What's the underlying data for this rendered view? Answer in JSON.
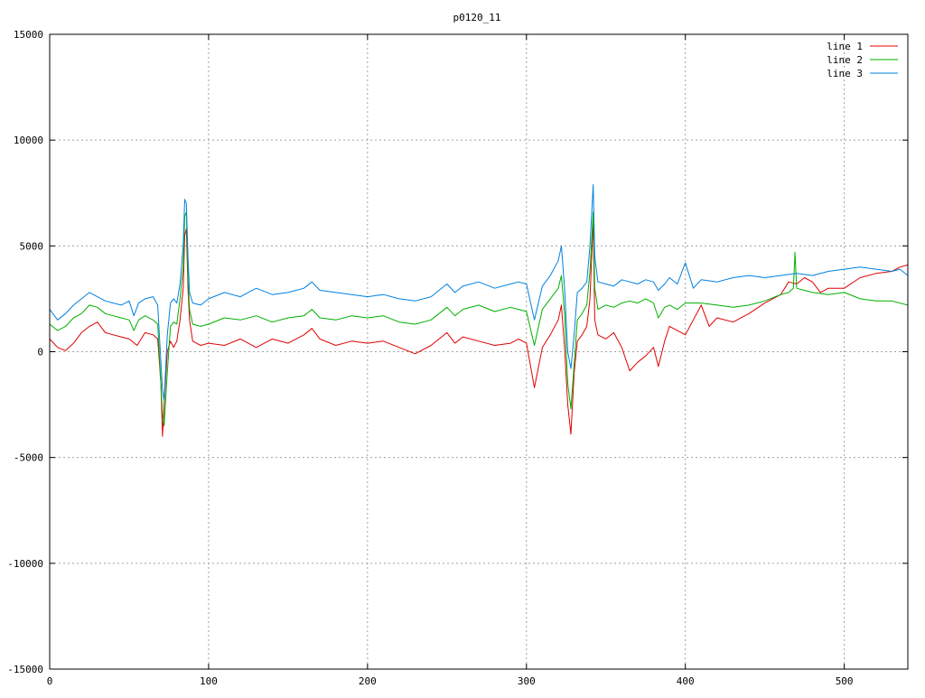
{
  "chart_data": {
    "type": "line",
    "title": "p0120_11",
    "xlabel": "",
    "ylabel": "",
    "xlim": [
      0,
      540
    ],
    "ylim": [
      -15000,
      15000
    ],
    "grid": true,
    "legend_position": "top-right",
    "x_ticks": [
      0,
      100,
      200,
      300,
      400,
      500
    ],
    "y_ticks": [
      -15000,
      -10000,
      -5000,
      0,
      5000,
      10000,
      15000
    ],
    "x_tick_labels": [
      "0",
      "100",
      "200",
      "300",
      "400",
      "500"
    ],
    "y_tick_labels": [
      "-15000",
      "-10000",
      "-5000",
      "0",
      "5000",
      "10000",
      "15000"
    ],
    "series": [
      {
        "name": "line 1",
        "color": "#e00000",
        "points": [
          [
            0,
            600
          ],
          [
            5,
            200
          ],
          [
            10,
            50
          ],
          [
            15,
            400
          ],
          [
            20,
            900
          ],
          [
            25,
            1200
          ],
          [
            30,
            1400
          ],
          [
            35,
            900
          ],
          [
            40,
            800
          ],
          [
            45,
            700
          ],
          [
            50,
            600
          ],
          [
            55,
            300
          ],
          [
            60,
            900
          ],
          [
            65,
            800
          ],
          [
            68,
            600
          ],
          [
            70,
            -1500
          ],
          [
            71,
            -4000
          ],
          [
            72,
            -2500
          ],
          [
            74,
            0
          ],
          [
            76,
            500
          ],
          [
            78,
            200
          ],
          [
            80,
            500
          ],
          [
            82,
            1500
          ],
          [
            84,
            3000
          ],
          [
            85,
            5500
          ],
          [
            86,
            5800
          ],
          [
            87,
            3000
          ],
          [
            88,
            1500
          ],
          [
            90,
            500
          ],
          [
            95,
            300
          ],
          [
            100,
            400
          ],
          [
            110,
            300
          ],
          [
            120,
            600
          ],
          [
            130,
            200
          ],
          [
            140,
            600
          ],
          [
            150,
            400
          ],
          [
            160,
            800
          ],
          [
            165,
            1100
          ],
          [
            170,
            600
          ],
          [
            180,
            300
          ],
          [
            190,
            500
          ],
          [
            200,
            400
          ],
          [
            210,
            500
          ],
          [
            220,
            200
          ],
          [
            230,
            -100
          ],
          [
            240,
            300
          ],
          [
            250,
            900
          ],
          [
            255,
            400
          ],
          [
            260,
            700
          ],
          [
            270,
            500
          ],
          [
            280,
            300
          ],
          [
            290,
            400
          ],
          [
            295,
            600
          ],
          [
            300,
            400
          ],
          [
            305,
            -1700
          ],
          [
            310,
            200
          ],
          [
            315,
            800
          ],
          [
            320,
            1500
          ],
          [
            322,
            2200
          ],
          [
            324,
            200
          ],
          [
            326,
            -2500
          ],
          [
            328,
            -3900
          ],
          [
            330,
            -1000
          ],
          [
            332,
            500
          ],
          [
            335,
            800
          ],
          [
            338,
            1200
          ],
          [
            340,
            2500
          ],
          [
            342,
            6300
          ],
          [
            343,
            1500
          ],
          [
            345,
            800
          ],
          [
            350,
            600
          ],
          [
            355,
            900
          ],
          [
            360,
            200
          ],
          [
            365,
            -900
          ],
          [
            370,
            -500
          ],
          [
            375,
            -200
          ],
          [
            380,
            200
          ],
          [
            383,
            -700
          ],
          [
            387,
            500
          ],
          [
            390,
            1200
          ],
          [
            395,
            1000
          ],
          [
            400,
            800
          ],
          [
            405,
            1500
          ],
          [
            410,
            2200
          ],
          [
            415,
            1200
          ],
          [
            420,
            1600
          ],
          [
            430,
            1400
          ],
          [
            440,
            1800
          ],
          [
            450,
            2300
          ],
          [
            460,
            2700
          ],
          [
            465,
            3300
          ],
          [
            470,
            3200
          ],
          [
            475,
            3500
          ],
          [
            480,
            3300
          ],
          [
            485,
            2800
          ],
          [
            490,
            3000
          ],
          [
            500,
            3000
          ],
          [
            510,
            3500
          ],
          [
            520,
            3700
          ],
          [
            530,
            3800
          ],
          [
            535,
            4000
          ],
          [
            540,
            4100
          ]
        ]
      },
      {
        "name": "line 2",
        "color": "#00b000",
        "points": [
          [
            0,
            1300
          ],
          [
            5,
            1000
          ],
          [
            10,
            1200
          ],
          [
            15,
            1600
          ],
          [
            20,
            1800
          ],
          [
            25,
            2200
          ],
          [
            30,
            2100
          ],
          [
            35,
            1800
          ],
          [
            40,
            1700
          ],
          [
            45,
            1600
          ],
          [
            50,
            1500
          ],
          [
            53,
            1000
          ],
          [
            56,
            1500
          ],
          [
            60,
            1700
          ],
          [
            65,
            1500
          ],
          [
            68,
            1300
          ],
          [
            70,
            -1500
          ],
          [
            71,
            -3000
          ],
          [
            72,
            -3500
          ],
          [
            74,
            -1000
          ],
          [
            76,
            1200
          ],
          [
            78,
            1400
          ],
          [
            80,
            1300
          ],
          [
            82,
            2500
          ],
          [
            84,
            4000
          ],
          [
            85,
            6400
          ],
          [
            86,
            6600
          ],
          [
            87,
            3500
          ],
          [
            88,
            2000
          ],
          [
            90,
            1300
          ],
          [
            95,
            1200
          ],
          [
            100,
            1300
          ],
          [
            110,
            1600
          ],
          [
            120,
            1500
          ],
          [
            130,
            1700
          ],
          [
            140,
            1400
          ],
          [
            150,
            1600
          ],
          [
            160,
            1700
          ],
          [
            165,
            2000
          ],
          [
            170,
            1600
          ],
          [
            180,
            1500
          ],
          [
            190,
            1700
          ],
          [
            200,
            1600
          ],
          [
            210,
            1700
          ],
          [
            220,
            1400
          ],
          [
            230,
            1300
          ],
          [
            240,
            1500
          ],
          [
            250,
            2100
          ],
          [
            255,
            1700
          ],
          [
            260,
            2000
          ],
          [
            270,
            2200
          ],
          [
            280,
            1900
          ],
          [
            290,
            2100
          ],
          [
            295,
            2000
          ],
          [
            300,
            1900
          ],
          [
            305,
            300
          ],
          [
            310,
            2000
          ],
          [
            315,
            2500
          ],
          [
            320,
            3000
          ],
          [
            322,
            3600
          ],
          [
            324,
            1800
          ],
          [
            326,
            -1500
          ],
          [
            328,
            -2700
          ],
          [
            330,
            -600
          ],
          [
            332,
            1500
          ],
          [
            335,
            1800
          ],
          [
            338,
            2200
          ],
          [
            340,
            3800
          ],
          [
            342,
            6600
          ],
          [
            343,
            3000
          ],
          [
            345,
            2000
          ],
          [
            350,
            2200
          ],
          [
            355,
            2100
          ],
          [
            360,
            2300
          ],
          [
            365,
            2400
          ],
          [
            370,
            2300
          ],
          [
            375,
            2500
          ],
          [
            380,
            2300
          ],
          [
            383,
            1600
          ],
          [
            387,
            2100
          ],
          [
            390,
            2200
          ],
          [
            395,
            2000
          ],
          [
            400,
            2300
          ],
          [
            410,
            2300
          ],
          [
            420,
            2200
          ],
          [
            430,
            2100
          ],
          [
            440,
            2200
          ],
          [
            450,
            2400
          ],
          [
            460,
            2700
          ],
          [
            465,
            2800
          ],
          [
            468,
            3000
          ],
          [
            469,
            4700
          ],
          [
            470,
            3000
          ],
          [
            475,
            2900
          ],
          [
            480,
            2800
          ],
          [
            490,
            2700
          ],
          [
            500,
            2800
          ],
          [
            510,
            2500
          ],
          [
            520,
            2400
          ],
          [
            530,
            2400
          ],
          [
            540,
            2200
          ]
        ]
      },
      {
        "name": "line 3",
        "color": "#0080e0",
        "points": [
          [
            0,
            2000
          ],
          [
            5,
            1500
          ],
          [
            10,
            1800
          ],
          [
            15,
            2200
          ],
          [
            20,
            2500
          ],
          [
            25,
            2800
          ],
          [
            30,
            2600
          ],
          [
            35,
            2400
          ],
          [
            40,
            2300
          ],
          [
            45,
            2200
          ],
          [
            50,
            2400
          ],
          [
            53,
            1700
          ],
          [
            56,
            2300
          ],
          [
            60,
            2500
          ],
          [
            65,
            2600
          ],
          [
            68,
            2200
          ],
          [
            70,
            -500
          ],
          [
            71,
            -1800
          ],
          [
            72,
            -2300
          ],
          [
            74,
            800
          ],
          [
            76,
            2300
          ],
          [
            78,
            2500
          ],
          [
            80,
            2300
          ],
          [
            82,
            3200
          ],
          [
            84,
            5000
          ],
          [
            85,
            7200
          ],
          [
            86,
            7000
          ],
          [
            87,
            4500
          ],
          [
            88,
            2800
          ],
          [
            90,
            2300
          ],
          [
            95,
            2200
          ],
          [
            100,
            2500
          ],
          [
            110,
            2800
          ],
          [
            120,
            2600
          ],
          [
            130,
            3000
          ],
          [
            140,
            2700
          ],
          [
            150,
            2800
          ],
          [
            160,
            3000
          ],
          [
            165,
            3300
          ],
          [
            170,
            2900
          ],
          [
            180,
            2800
          ],
          [
            190,
            2700
          ],
          [
            200,
            2600
          ],
          [
            210,
            2700
          ],
          [
            220,
            2500
          ],
          [
            230,
            2400
          ],
          [
            240,
            2600
          ],
          [
            250,
            3200
          ],
          [
            255,
            2800
          ],
          [
            260,
            3100
          ],
          [
            270,
            3300
          ],
          [
            280,
            3000
          ],
          [
            290,
            3200
          ],
          [
            295,
            3300
          ],
          [
            300,
            3200
          ],
          [
            305,
            1500
          ],
          [
            310,
            3100
          ],
          [
            315,
            3600
          ],
          [
            320,
            4300
          ],
          [
            322,
            5000
          ],
          [
            324,
            3000
          ],
          [
            326,
            0
          ],
          [
            328,
            -800
          ],
          [
            330,
            800
          ],
          [
            332,
            2800
          ],
          [
            335,
            3000
          ],
          [
            338,
            3300
          ],
          [
            340,
            5000
          ],
          [
            342,
            7900
          ],
          [
            343,
            4500
          ],
          [
            345,
            3300
          ],
          [
            350,
            3200
          ],
          [
            355,
            3100
          ],
          [
            360,
            3400
          ],
          [
            365,
            3300
          ],
          [
            370,
            3200
          ],
          [
            375,
            3400
          ],
          [
            380,
            3300
          ],
          [
            383,
            2900
          ],
          [
            387,
            3200
          ],
          [
            390,
            3500
          ],
          [
            395,
            3200
          ],
          [
            400,
            4200
          ],
          [
            405,
            3000
          ],
          [
            410,
            3400
          ],
          [
            420,
            3300
          ],
          [
            430,
            3500
          ],
          [
            440,
            3600
          ],
          [
            450,
            3500
          ],
          [
            460,
            3600
          ],
          [
            470,
            3700
          ],
          [
            480,
            3600
          ],
          [
            490,
            3800
          ],
          [
            500,
            3900
          ],
          [
            510,
            4000
          ],
          [
            520,
            3900
          ],
          [
            530,
            3800
          ],
          [
            535,
            3900
          ],
          [
            540,
            3600
          ]
        ]
      }
    ]
  }
}
